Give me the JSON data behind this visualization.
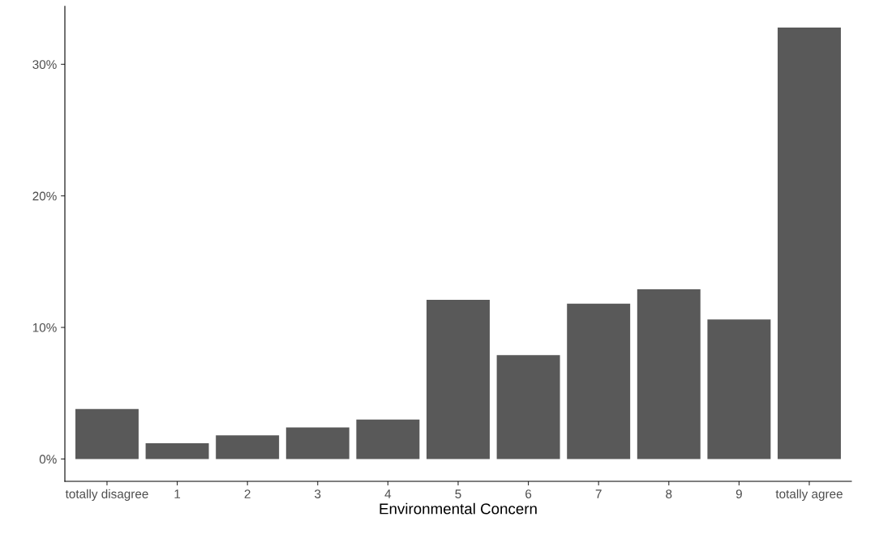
{
  "chart_data": {
    "type": "bar",
    "xlabel": "Environmental Concern",
    "categories": [
      "totally disagree",
      "1",
      "2",
      "3",
      "4",
      "5",
      "6",
      "7",
      "8",
      "9",
      "totally agree"
    ],
    "values": [
      3.8,
      1.2,
      1.8,
      2.4,
      3.0,
      12.1,
      7.9,
      11.8,
      12.9,
      10.6,
      32.8
    ],
    "color": "#595959",
    "ylim": [
      -1.7,
      34.4
    ],
    "yticks": [
      {
        "value": 0,
        "label": "0%"
      },
      {
        "value": 10,
        "label": "10%"
      },
      {
        "value": 20,
        "label": "20%"
      },
      {
        "value": 30,
        "label": "30%"
      }
    ],
    "grid": false
  }
}
